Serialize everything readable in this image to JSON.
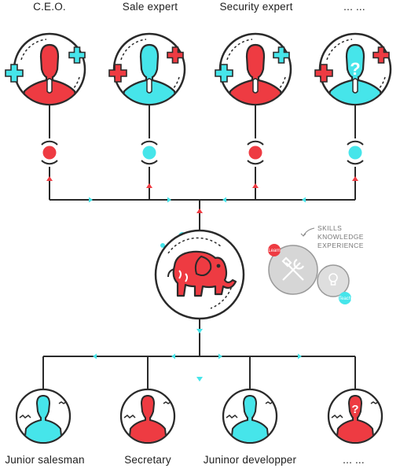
{
  "colors": {
    "red": "#ee3b42",
    "cyan": "#46e5ea",
    "line": "#2a2a2a",
    "gray": "#cfcfcf"
  },
  "top_roles": [
    {
      "label": "C.E.O.",
      "body_color": "red",
      "dot_color": "red",
      "icon": "person-icon",
      "badge": "plus"
    },
    {
      "label": "Sale expert",
      "body_color": "cyan",
      "dot_color": "cyan",
      "icon": "person-icon",
      "badge": "plus"
    },
    {
      "label": "Security expert",
      "body_color": "red",
      "dot_color": "red",
      "icon": "person-icon",
      "badge": "plus"
    },
    {
      "label": "... ...",
      "body_color": "cyan",
      "dot_color": "cyan",
      "icon": "unknown-person-icon",
      "badge": "question"
    }
  ],
  "center": {
    "icon": "elephant-icon"
  },
  "legend": {
    "title_lines": [
      "SKILLS",
      "KNOWLEDGE",
      "EXPERIENCE"
    ],
    "learn_label": "Learn",
    "teach_label": "Teach",
    "icons": [
      "tools-icon",
      "lightbulb-icon"
    ]
  },
  "bottom_roles": [
    {
      "label": "Junior salesman",
      "body_color": "cyan",
      "icon": "person-icon"
    },
    {
      "label": "Secretary",
      "body_color": "red",
      "icon": "person-icon"
    },
    {
      "label": "Juninor developper",
      "body_color": "cyan",
      "icon": "person-icon"
    },
    {
      "label": "... ...",
      "body_color": "red",
      "icon": "unknown-person-icon"
    }
  ]
}
